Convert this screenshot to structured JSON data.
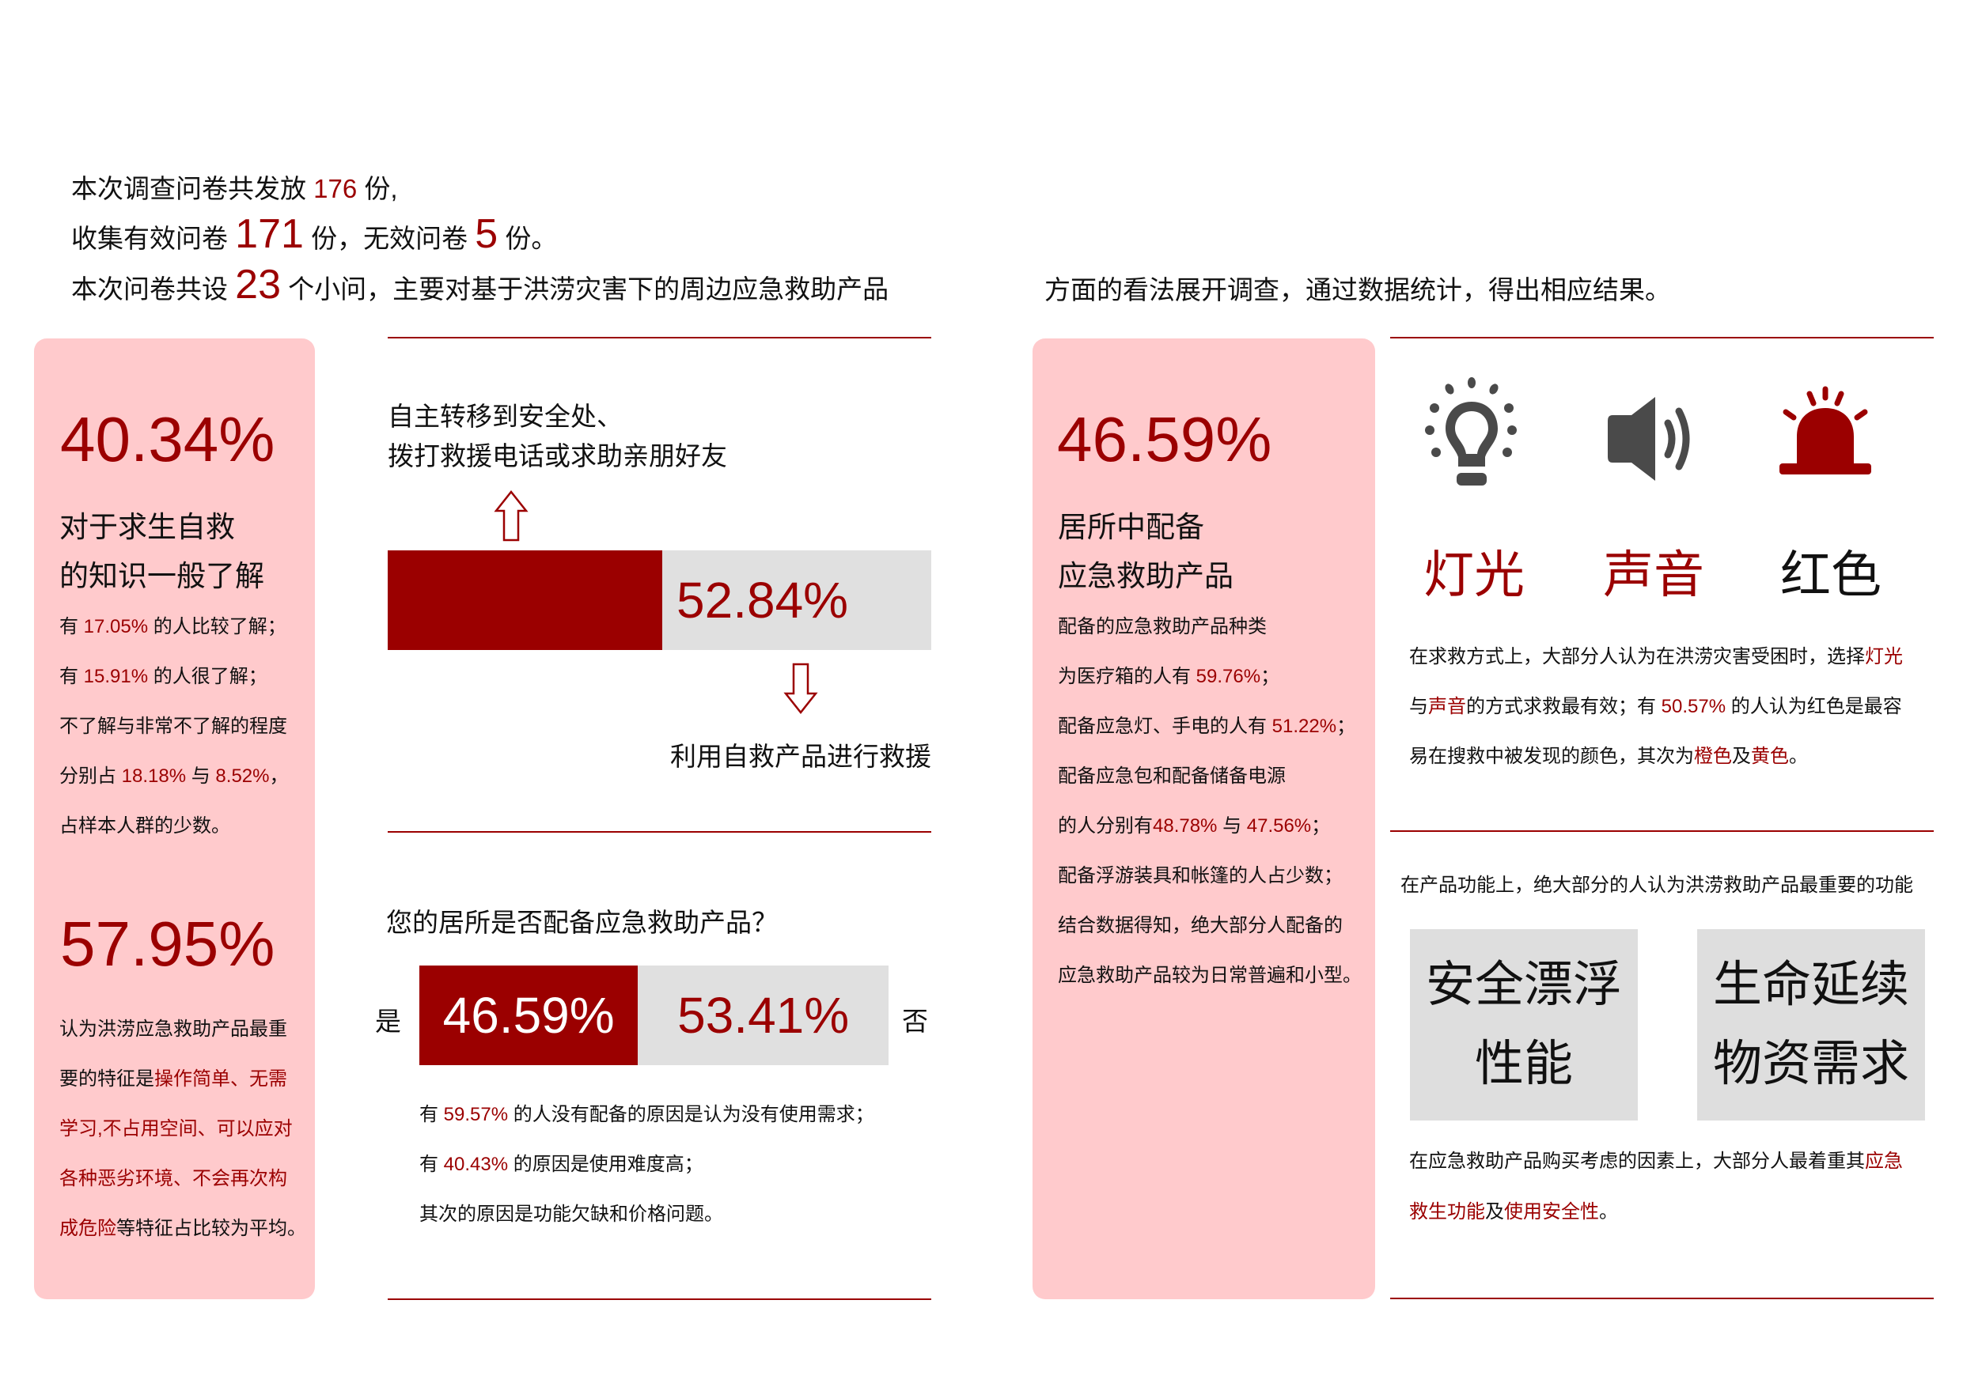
{
  "colors": {
    "accent": "#9b0000",
    "card": "#ffcacc",
    "bar_bg": "#e0e0e0",
    "icon_gray": "#4a4a4a"
  },
  "intro": {
    "line1": [
      {
        "t": "本次调查问卷共发放 "
      },
      {
        "t": "176",
        "hl": 1
      },
      {
        "t": " 份,"
      }
    ],
    "line2": [
      {
        "t": "收集有效问卷 "
      },
      {
        "t": "171",
        "hl": 1,
        "big": 1
      },
      {
        "t": " 份，无效问卷 "
      },
      {
        "t": "5",
        "hl": 1,
        "big": 1
      },
      {
        "t": " 份。"
      }
    ],
    "line3": [
      {
        "t": "本次问卷共设 "
      },
      {
        "t": "23",
        "hl": 1,
        "big": 1
      },
      {
        "t": " 个小问，主要对基于洪涝灾害下的周边应急救助产品"
      }
    ],
    "line3_cont": "方面的看法展开调查，通过数据统计，得出相应结果。"
  },
  "left_card": {
    "pct1": "40.34%",
    "head1": "对于求生自救",
    "head2": "的知识一般了解",
    "lines": [
      [
        {
          "t": "有 "
        },
        {
          "t": "17.05%",
          "hl": 1
        },
        {
          "t": " 的人比较了解；"
        }
      ],
      [
        {
          "t": "有 "
        },
        {
          "t": "15.91%",
          "hl": 1
        },
        {
          "t": " 的人很了解；"
        }
      ],
      [
        {
          "t": "不了解与非常不了解的程度"
        }
      ],
      [
        {
          "t": "分别占 "
        },
        {
          "t": "18.18%",
          "hl": 1
        },
        {
          "t": " 与 "
        },
        {
          "t": "8.52%",
          "hl": 1
        },
        {
          "t": "，"
        }
      ],
      [
        {
          "t": "占样本人群的少数。"
        }
      ]
    ],
    "pct2": "57.95%",
    "lines2": [
      [
        {
          "t": "认为洪涝应急救助产品最重"
        }
      ],
      [
        {
          "t": "要的特征是"
        },
        {
          "t": "操作简单、无需",
          "hl": 1
        }
      ],
      [
        {
          "t": "学习,不占用空间、可以应对",
          "hl": 1
        }
      ],
      [
        {
          "t": "各种恶劣环境、不会再次构",
          "hl": 1
        }
      ],
      [
        {
          "t": "成危险",
          "hl": 1
        },
        {
          "t": "等特征占比较为平均。"
        }
      ]
    ]
  },
  "middle": {
    "option_top_1": "自主转移到安全处、",
    "option_top_2": "拨打救援电话或求助亲朋好友",
    "self_rescue_pct": 52.84,
    "self_rescue_label": "52.84%",
    "option_bottom": "利用自救产品进行救援",
    "question": "您的居所是否配备应急救助产品？",
    "yes_label": "是",
    "no_label": "否",
    "yes_pct": 46.59,
    "yes_text": "46.59%",
    "no_text": "53.41%",
    "lines": [
      [
        {
          "t": "有 "
        },
        {
          "t": "59.57%",
          "hl": 1
        },
        {
          "t": " 的人没有配备的原因是认为没有使用需求；"
        }
      ],
      [
        {
          "t": "有 "
        },
        {
          "t": "40.43%",
          "hl": 1
        },
        {
          "t": " 的原因是使用难度高；"
        }
      ],
      [
        {
          "t": "其次的原因是功能欠缺和价格问题。"
        }
      ]
    ]
  },
  "right_card": {
    "pct": "46.59%",
    "head1": "居所中配备",
    "head2": "应急救助产品",
    "lines": [
      [
        {
          "t": "配备的应急救助产品种类"
        }
      ],
      [
        {
          "t": "为医疗箱的人有 "
        },
        {
          "t": "59.76%",
          "hl": 1
        },
        {
          "t": "；"
        }
      ],
      [
        {
          "t": "配备应急灯、手电的人有 "
        },
        {
          "t": "51.22%",
          "hl": 1
        },
        {
          "t": "；"
        }
      ],
      [
        {
          "t": "配备应急包和配备储备电源"
        }
      ],
      [
        {
          "t": "的人分别有"
        },
        {
          "t": "48.78%",
          "hl": 1
        },
        {
          "t": " 与 "
        },
        {
          "t": "47.56%",
          "hl": 1
        },
        {
          "t": "；"
        }
      ],
      [
        {
          "t": "配备浮游装具和帐篷的人占少数；"
        }
      ],
      [
        {
          "t": "结合数据得知，绝大部分人配备的"
        }
      ],
      [
        {
          "t": "应急救助产品较为日常普遍和小型。"
        }
      ]
    ]
  },
  "far_right": {
    "icons": [
      {
        "icon": "lightbulb-icon",
        "label": "灯光",
        "hl": 1
      },
      {
        "icon": "speaker-icon",
        "label": "声音",
        "hl": 1
      },
      {
        "icon": "alarm-light-icon",
        "label": "红色",
        "hl": 0
      }
    ],
    "lines": [
      [
        {
          "t": "在求救方式上，大部分人认为在洪涝灾害受困时，选择"
        },
        {
          "t": "灯光",
          "hl": 1
        }
      ],
      [
        {
          "t": "与"
        },
        {
          "t": "声音",
          "hl": 1
        },
        {
          "t": "的方式求救最有效；有 "
        },
        {
          "t": "50.57%",
          "hl": 1
        },
        {
          "t": " 的人认为红色是最容"
        }
      ],
      [
        {
          "t": "易在搜救中被发现的颜色，其次为"
        },
        {
          "t": "橙色",
          "hl": 1
        },
        {
          "t": "及"
        },
        {
          "t": "黄色",
          "hl": 1
        },
        {
          "t": "。"
        }
      ]
    ],
    "function_intro": "在产品功能上，绝大部分的人认为洪涝救助产品最重要的功能",
    "box1": [
      "安全漂浮",
      "性能"
    ],
    "box2": [
      "生命延续",
      "物资需求"
    ],
    "lines2": [
      [
        {
          "t": "在应急救助产品购买考虑的因素上，大部分人最着重其"
        },
        {
          "t": "应急",
          "hl": 1
        }
      ],
      [
        {
          "t": "救生功能",
          "hl": 1
        },
        {
          "t": "及"
        },
        {
          "t": "使用安全性",
          "hl": 1
        },
        {
          "t": "。"
        }
      ]
    ]
  }
}
